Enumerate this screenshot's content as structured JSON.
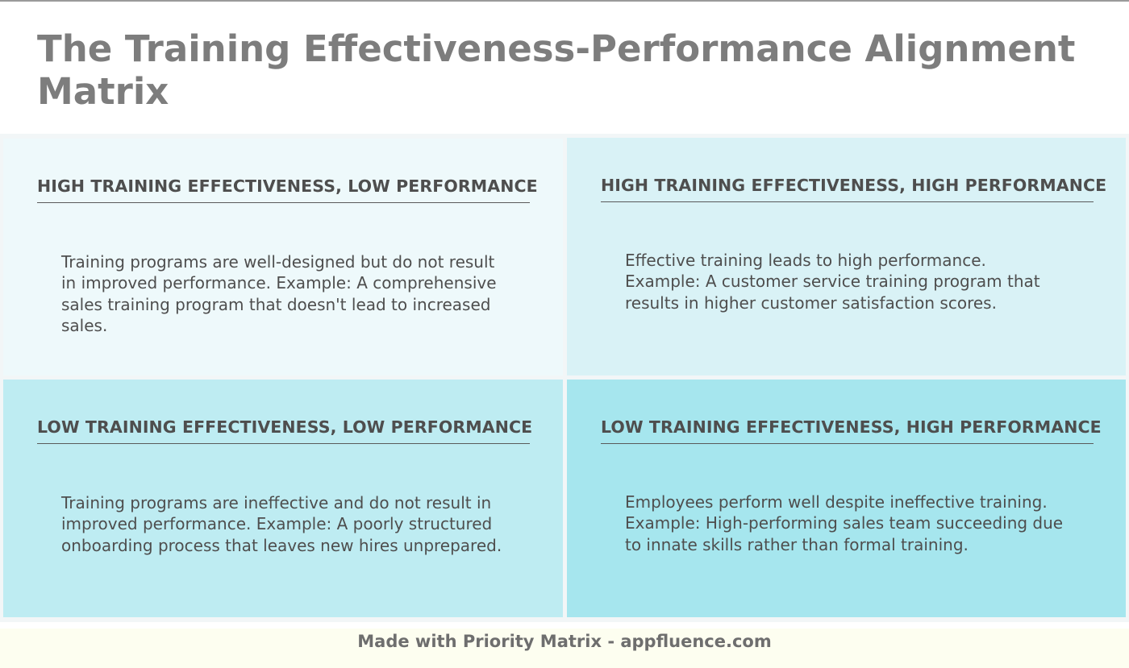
{
  "title": "The Training Effectiveness-Performance Alignment Matrix",
  "quadrants": {
    "top_left": {
      "heading": "HIGH TRAINING EFFECTIVENESS, LOW PERFORMANCE",
      "description": "Training programs are well-designed but do not result in improved performance. Example: A comprehensive sales training program that doesn't lead to increased sales.",
      "color": "#eef9fb"
    },
    "top_right": {
      "heading": "HIGH TRAINING EFFECTIVENESS, HIGH PERFORMANCE",
      "description": "Effective training leads to high performance. Example: A customer service training program that results in higher customer satisfaction scores.",
      "color": "#d9f2f6"
    },
    "bottom_left": {
      "heading": "LOW TRAINING EFFECTIVENESS, LOW PERFORMANCE",
      "description": "Training programs are ineffective and do not result in improved performance. Example: A poorly structured onboarding process that leaves new hires unprepared.",
      "color": "#beecf2"
    },
    "bottom_right": {
      "heading": "LOW TRAINING EFFECTIVENESS, HIGH PERFORMANCE",
      "description": "Employees perform well despite ineffective training. Example: High-performing sales team succeeding due to innate skills rather than formal training.",
      "color": "#a6e6ee"
    }
  },
  "footer": {
    "text": "Made with Priority Matrix - appfluence.com",
    "background": "#fdfef0"
  }
}
